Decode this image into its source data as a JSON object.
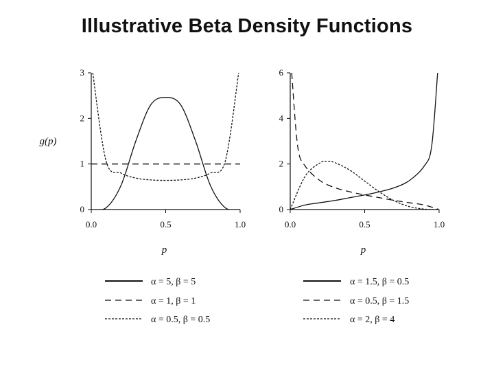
{
  "title": "Illustrative Beta Density Functions",
  "chart_data": [
    {
      "type": "line",
      "title": "",
      "xlabel": "p",
      "ylabel": "g(p)",
      "xlim": [
        0,
        1
      ],
      "ylim": [
        0,
        3
      ],
      "xticks": [
        "0.0",
        "0.5",
        "1.0"
      ],
      "yticks": [
        "0",
        "1",
        "2",
        "3"
      ],
      "grid": false,
      "legend_position": "bottom",
      "series": [
        {
          "name": "α = 5, β = 5",
          "alpha": 5,
          "beta": 5,
          "style": "solid",
          "x": [
            0.0,
            0.1,
            0.2,
            0.3,
            0.4,
            0.5,
            0.6,
            0.7,
            0.8,
            0.9,
            1.0
          ],
          "y": [
            0.0,
            0.04,
            0.53,
            1.51,
            2.3,
            2.46,
            2.3,
            1.51,
            0.53,
            0.04,
            0.0
          ]
        },
        {
          "name": "α = 1, β = 1",
          "alpha": 1,
          "beta": 1,
          "style": "dashed",
          "x": [
            0.0,
            1.0
          ],
          "y": [
            1.0,
            1.0
          ]
        },
        {
          "name": "α = 0.5, β = 0.5",
          "alpha": 0.5,
          "beta": 0.5,
          "style": "dotted",
          "x": [
            0.01,
            0.1,
            0.2,
            0.3,
            0.4,
            0.5,
            0.6,
            0.7,
            0.8,
            0.9,
            0.99
          ],
          "y": [
            3.0,
            1.06,
            0.8,
            0.69,
            0.65,
            0.64,
            0.65,
            0.69,
            0.8,
            1.06,
            3.0
          ]
        }
      ]
    },
    {
      "type": "line",
      "title": "",
      "xlabel": "p",
      "ylabel": "",
      "xlim": [
        0,
        1
      ],
      "ylim": [
        0,
        6
      ],
      "xticks": [
        "0.0",
        "0.5",
        "1.0"
      ],
      "yticks": [
        "0",
        "2",
        "4",
        "6"
      ],
      "grid": false,
      "legend_position": "bottom",
      "series": [
        {
          "name": "α = 1.5, β = 0.5",
          "alpha": 1.5,
          "beta": 0.5,
          "style": "solid",
          "x": [
            0.0,
            0.1,
            0.2,
            0.3,
            0.4,
            0.5,
            0.6,
            0.7,
            0.8,
            0.9,
            0.95,
            0.99
          ],
          "y": [
            0.0,
            0.2,
            0.3,
            0.4,
            0.52,
            0.64,
            0.78,
            0.96,
            1.27,
            1.91,
            2.78,
            6.0
          ]
        },
        {
          "name": "α = 0.5, β = 1.5",
          "alpha": 0.5,
          "beta": 1.5,
          "style": "dashed",
          "x": [
            0.01,
            0.05,
            0.1,
            0.2,
            0.3,
            0.4,
            0.5,
            0.6,
            0.7,
            0.8,
            0.9,
            1.0
          ],
          "y": [
            6.0,
            2.78,
            1.91,
            1.27,
            0.96,
            0.78,
            0.64,
            0.52,
            0.4,
            0.3,
            0.2,
            0.0
          ]
        },
        {
          "name": "α = 2, β = 4",
          "alpha": 2,
          "beta": 4,
          "style": "dotted",
          "x": [
            0.0,
            0.1,
            0.2,
            0.25,
            0.3,
            0.4,
            0.5,
            0.6,
            0.7,
            0.8,
            0.9,
            1.0
          ],
          "y": [
            0.0,
            1.46,
            2.05,
            2.11,
            2.06,
            1.73,
            1.25,
            0.77,
            0.38,
            0.13,
            0.02,
            0.0
          ]
        }
      ]
    }
  ]
}
